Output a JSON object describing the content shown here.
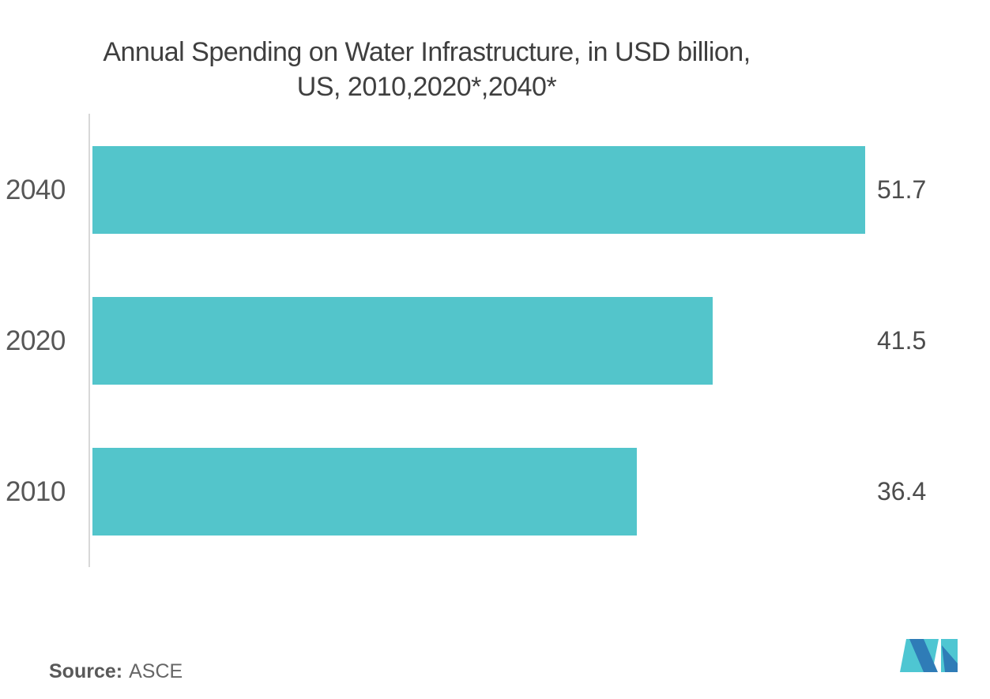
{
  "title": {
    "line1": "Annual Spending on Water Infrastructure, in USD billion,",
    "line2": "US, 2010,2020*,2040*"
  },
  "chart_data": {
    "type": "bar",
    "orientation": "horizontal",
    "title": "Annual Spending on Water Infrastructure, in USD billion, US, 2010,2020*,2040*",
    "categories": [
      "2040",
      "2020",
      "2010"
    ],
    "values": [
      51.7,
      41.5,
      36.4
    ],
    "value_labels": [
      "51.7",
      "41.5",
      "36.4"
    ],
    "xlabel": "",
    "ylabel": "",
    "xlim": [
      0,
      51.7
    ],
    "grid": false,
    "legend": false,
    "bar_color": "#53C5CB",
    "axis_line_color": "#d8d8d8"
  },
  "source": {
    "label": "Source:",
    "value": "ASCE"
  },
  "colors": {
    "background": "#ffffff",
    "title_text": "#3f3f3f",
    "category_text": "#575757",
    "value_text": "#4c4c4c",
    "bar": "#53C5CB",
    "axis": "#d8d8d8",
    "logo_blue": "#2F7CB7",
    "logo_teal": "#4EC6D2"
  },
  "logo": {
    "icon": "mi-monogram-logo"
  }
}
